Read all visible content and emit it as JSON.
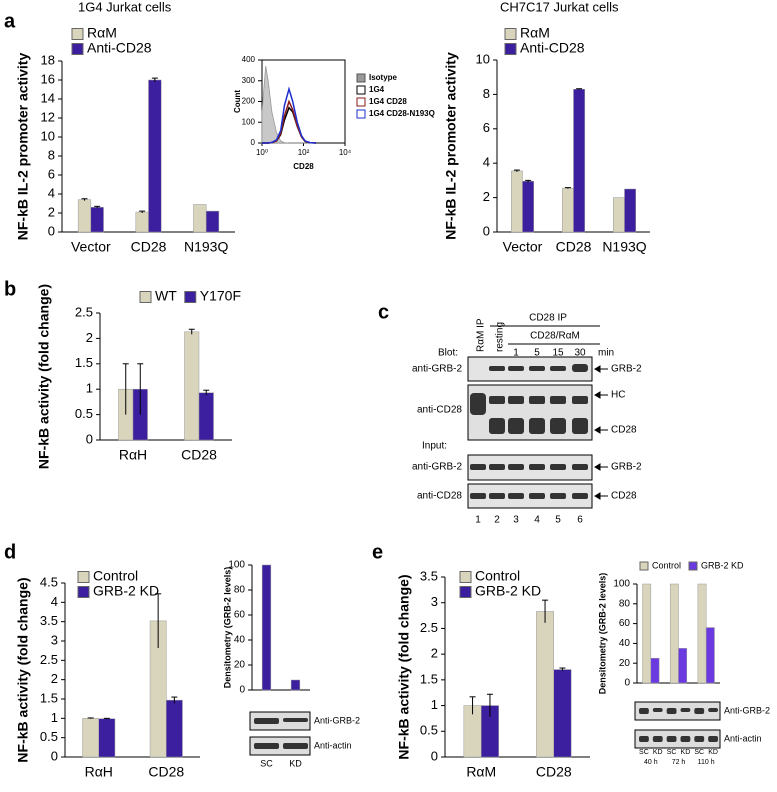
{
  "chart_data": [
    {
      "type": "bar",
      "panel": "a",
      "title": "1G4 Jurkat cells",
      "y_label": "NF-kB IL-2 promoter activity",
      "categories": [
        "Vector",
        "CD28",
        "N193Q"
      ],
      "series": [
        {
          "name": "RαM",
          "color": "#d9d5bd",
          "values": [
            3.4,
            2.1,
            2.9
          ],
          "errors": [
            0.1,
            0.1,
            null
          ]
        },
        {
          "name": "Anti-CD28",
          "color": "#3b1f9e",
          "values": [
            2.6,
            16.0,
            2.2
          ],
          "errors": [
            0.1,
            0.2,
            null
          ]
        }
      ],
      "ylim": [
        0,
        18
      ],
      "yticks": [
        0,
        2,
        4,
        6,
        8,
        10,
        12,
        14,
        16,
        18
      ]
    },
    {
      "type": "line",
      "y_label": "Count",
      "x_label": "CD28",
      "log_x": true,
      "x": [
        1,
        1.5,
        2,
        3,
        5,
        8,
        12,
        20,
        30,
        50,
        80,
        120,
        200,
        400
      ],
      "series": [
        {
          "name": "Isotype",
          "color": "#999999",
          "filled": true,
          "values": [
            150,
            370,
            300,
            150,
            50,
            10,
            2,
            0,
            0,
            0,
            0,
            0,
            0,
            0
          ]
        },
        {
          "name": "1G4",
          "color": "#000000",
          "values": [
            0,
            0,
            0,
            2,
            10,
            40,
            110,
            170,
            150,
            80,
            30,
            8,
            2,
            0
          ]
        },
        {
          "name": "1G4 CD28",
          "color": "#8b1a1a",
          "values": [
            0,
            0,
            0,
            2,
            10,
            45,
            130,
            200,
            160,
            80,
            30,
            8,
            2,
            0
          ]
        },
        {
          "name": "1G4 CD28-N193Q",
          "color": "#1f2fd0",
          "values": [
            0,
            0,
            0,
            3,
            15,
            60,
            180,
            260,
            200,
            100,
            35,
            10,
            2,
            0
          ]
        }
      ],
      "xlim": [
        1,
        10000
      ],
      "xticks": [
        {
          "value": 1,
          "label": "10⁰"
        },
        {
          "value": 100,
          "label": "10²"
        },
        {
          "value": 10000,
          "label": "10⁴"
        }
      ],
      "ylim": [
        0,
        400
      ],
      "yticks": [
        0,
        100,
        200,
        300,
        400
      ]
    },
    {
      "type": "bar",
      "title": "CH7C17 Jurkat cells",
      "y_label": "NF-kB IL-2 promoter activity",
      "categories": [
        "Vector",
        "CD28",
        "N193Q"
      ],
      "series": [
        {
          "name": "RαM",
          "color": "#d9d5bd",
          "values": [
            3.55,
            2.55,
            2.0
          ],
          "errors": [
            0.05,
            0.03,
            null
          ]
        },
        {
          "name": "Anti-CD28",
          "color": "#3b1f9e",
          "values": [
            2.95,
            8.3,
            2.5
          ],
          "errors": [
            0.05,
            0.03,
            null
          ]
        }
      ],
      "ylim": [
        0,
        10
      ],
      "yticks": [
        0,
        2,
        4,
        6,
        8,
        10
      ]
    },
    {
      "type": "bar",
      "panel": "b",
      "y_label": "NF-kB activity (fold change)",
      "categories": [
        "RαH",
        "CD28"
      ],
      "series": [
        {
          "name": "WT",
          "color": "#d9d5bd",
          "values": [
            1,
            2.13
          ],
          "errors": [
            0.5,
            0.05
          ]
        },
        {
          "name": "Y170F",
          "color": "#3b1f9e",
          "values": [
            1,
            0.93
          ],
          "errors": [
            0.5,
            0.05
          ]
        }
      ],
      "ylim": [
        0,
        2.5
      ],
      "yticks": [
        0,
        0.5,
        1,
        1.5,
        2,
        2.5
      ]
    },
    {
      "type": "bar",
      "panel": "d",
      "y_label": "NF-kB activity (fold change)",
      "categories": [
        "RαH",
        "CD28"
      ],
      "series": [
        {
          "name": "Control",
          "color": "#d9d5bd",
          "values": [
            1,
            3.52
          ],
          "errors": [
            0.01,
            0.7
          ]
        },
        {
          "name": "GRB-2 KD",
          "color": "#3b1f9e",
          "values": [
            0.99,
            1.47
          ],
          "errors": [
            0.01,
            0.08
          ]
        }
      ],
      "ylim": [
        0,
        4.5
      ],
      "yticks": [
        0,
        0.5,
        1,
        1.5,
        2,
        2.5,
        3,
        3.5,
        4,
        4.5
      ]
    },
    {
      "type": "bar",
      "y_label": "Densitometry (GRB-2 levels)",
      "categories": [
        "SC",
        "KD"
      ],
      "values": [
        100,
        8
      ],
      "color": "#3b1f9e",
      "blot_labels": [
        "Anti-GRB-2",
        "Anti-actin"
      ],
      "ylim": [
        0,
        100
      ],
      "yticks": [
        0,
        20,
        40,
        60,
        80,
        100
      ]
    },
    {
      "type": "bar",
      "panel": "e",
      "y_label": "NF-kB activity (fold change)",
      "categories": [
        "RαM",
        "CD28"
      ],
      "series": [
        {
          "name": "Control",
          "color": "#d9d5bd",
          "values": [
            1,
            2.83
          ],
          "errors": [
            0.17,
            0.22
          ]
        },
        {
          "name": "GRB-2 KD",
          "color": "#3b1f9e",
          "values": [
            1,
            1.7
          ],
          "errors": [
            0.22,
            0.03
          ]
        }
      ],
      "ylim": [
        0,
        3.5
      ],
      "yticks": [
        0,
        0.5,
        1,
        1.5,
        2,
        2.5,
        3,
        3.5
      ]
    },
    {
      "type": "bar",
      "y_label": "Densitometry (GRB-2 levels)",
      "categories": [
        "40 h",
        "72 h",
        "110 h"
      ],
      "lane_labels": [
        "SC",
        "KD",
        "SC",
        "KD",
        "SC",
        "KD"
      ],
      "blot_labels": [
        "Anti-GRB-2",
        "Anti-actin"
      ],
      "series": [
        {
          "name": "Control",
          "color": "#d9d5bd",
          "values": [
            100,
            100,
            100
          ]
        },
        {
          "name": "GRB-2 KD",
          "color": "#6a3ae0",
          "values": [
            25,
            35,
            56
          ]
        }
      ],
      "ylim": [
        0,
        100
      ],
      "yticks": [
        0,
        20,
        40,
        60,
        80,
        100
      ]
    }
  ],
  "blot_c": {
    "panel": "c",
    "ip_control": "RαM IP",
    "ip": "CD28 IP",
    "resting": "resting",
    "stim": "CD28/RαM",
    "blot_label": "Blot:",
    "times": [
      "1",
      "5",
      "15",
      "30"
    ],
    "time_unit": "min",
    "row_labels": [
      "anti-GRB-2",
      "anti-CD28",
      "Input:",
      "anti-GRB-2",
      "anti-CD28"
    ],
    "band_labels": [
      "GRB-2",
      "HC",
      "CD28",
      "GRB-2",
      "CD28"
    ],
    "lanes": [
      "1",
      "2",
      "3",
      "4",
      "5",
      "6"
    ]
  }
}
